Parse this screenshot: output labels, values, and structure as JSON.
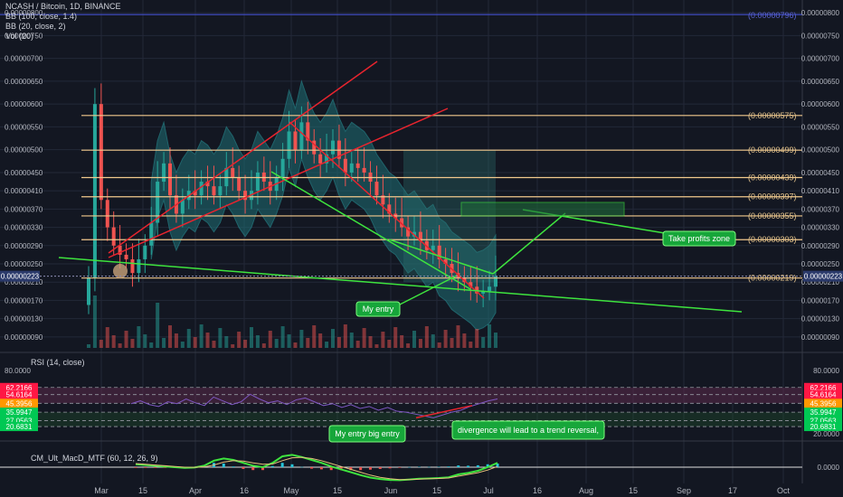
{
  "header": {
    "symbol_line": "NCASH / Bitcoin, 1D, BINANCE",
    "indicators": [
      "BB (100, close, 1.4)",
      "BB (20, close, 2)",
      "Vol (20)"
    ]
  },
  "colors": {
    "background": "#131722",
    "grid": "#232838",
    "candle_up": "#26a69a",
    "candle_down": "#ef5350",
    "bb_fill": "#1f6f74",
    "trendline_red": "#e8242e",
    "trendline_green": "#3ee43e",
    "fib_line": "#f2c98d",
    "price_tag": "#2b3a6b",
    "rsi_band": "#5b2a4a"
  },
  "chart_data": [
    {
      "type": "candlestick",
      "panel": "price",
      "title": "NCASH / Bitcoin, 1D, BINANCE",
      "x_tick_labels": [
        "Mar",
        "15",
        "Apr",
        "16",
        "May",
        "15",
        "Jun",
        "15",
        "Jul",
        "16",
        "Aug",
        "15",
        "Sep",
        "17",
        "Oct"
      ],
      "y_tick_labels": [
        "0.00000800",
        "0.00000750",
        "0.00000700",
        "0.00000650",
        "0.00000600",
        "0.00000550",
        "0.00000500",
        "0.00000450",
        "0.00000410",
        "0.00000370",
        "0.00000330",
        "0.00000290",
        "0.00000250",
        "0.00000210",
        "0.00000170",
        "0.00000130",
        "0.00000090"
      ],
      "ylim": [
        6e-07,
        8.2e-06
      ],
      "current_price": "0.00000223",
      "top_tag": "(0.00000796)",
      "fib_levels": [
        {
          "value": 5.75e-06,
          "label": "(0.00000575)"
        },
        {
          "value": 4.99e-06,
          "label": "(0.00000499)"
        },
        {
          "value": 4.39e-06,
          "label": "(0.00000439)"
        },
        {
          "value": 3.97e-06,
          "label": "(0.00000397)"
        },
        {
          "value": 3.55e-06,
          "label": "(0.00000355)"
        },
        {
          "value": 3.03e-06,
          "label": "(0.00000303)"
        },
        {
          "value": 2.19e-06,
          "label": "(0.00000219)"
        }
      ],
      "path_close": [
        2.2,
        6.0,
        3.9,
        3.3,
        2.9,
        2.7,
        2.6,
        2.3,
        2.6,
        2.9,
        3.4,
        4.3,
        4.7,
        4.0,
        3.6,
        3.9,
        4.1,
        4.0,
        4.3,
        4.2,
        4.0,
        4.2,
        4.6,
        4.4,
        4.1,
        3.9,
        4.1,
        4.5,
        4.3,
        4.1,
        4.4,
        4.8,
        5.4,
        5.0,
        5.6,
        5.2,
        4.9,
        4.7,
        4.9,
        5.2,
        4.8,
        4.5,
        4.7,
        4.6,
        4.5,
        4.3,
        4.0,
        3.8,
        3.6,
        3.5,
        3.3,
        3.1,
        3.2,
        3.0,
        2.8,
        2.9,
        2.6,
        2.5,
        2.3,
        2.2,
        2.1,
        2.0,
        1.85,
        1.9,
        2.0,
        2.23
      ]
    },
    {
      "type": "line",
      "panel": "rsi",
      "title": "RSI (14, close)",
      "y_tick_labels": [
        "80.0000",
        "20.0000"
      ],
      "levels": [
        {
          "value": 62.2166,
          "label": "62.2166",
          "color": "#ff1744"
        },
        {
          "value": 54.6164,
          "label": "54.6164",
          "color": "#ff1744"
        },
        {
          "value": 45.3956,
          "label": "45.3956",
          "color": "#ff9800"
        },
        {
          "value": 35.9947,
          "label": "35.9947",
          "color": "#00c853"
        },
        {
          "value": 27.0563,
          "label": "27.0563",
          "color": "#00c853"
        },
        {
          "value": 20.6831,
          "label": "20.6831",
          "color": "#00c853"
        }
      ],
      "ylim": [
        15,
        85
      ],
      "values": [
        45,
        48,
        44,
        42,
        47,
        45,
        50,
        46,
        43,
        52,
        48,
        44,
        47,
        55,
        50,
        46,
        48,
        44,
        49,
        51,
        47,
        43,
        45,
        41,
        44,
        40,
        42,
        38,
        41,
        37,
        36,
        34,
        32,
        30,
        33,
        36,
        38,
        42,
        45,
        48,
        50
      ]
    },
    {
      "type": "line",
      "panel": "macd",
      "title": "CM_Ult_MacD_MTF (60, 12, 26, 9)",
      "y_tick_labels": [
        "0.0000"
      ],
      "series_macd": [
        0.2,
        0.15,
        0.1,
        0.05,
        0.0,
        -0.05,
        -0.02,
        0.1,
        0.45,
        0.6,
        0.5,
        0.3,
        0.1,
        0.0,
        0.3,
        0.75,
        0.85,
        0.7,
        0.5,
        0.3,
        0.05,
        -0.15,
        -0.35,
        -0.55,
        -0.72,
        -0.82,
        -0.88,
        -0.9,
        -0.85,
        -0.8,
        -0.78,
        -0.75,
        -0.7,
        -0.5,
        -0.4,
        -0.25,
        0.0,
        0.3
      ],
      "series_signal": [
        0.25,
        0.2,
        0.15,
        0.1,
        0.05,
        0.0,
        -0.01,
        0.02,
        0.15,
        0.35,
        0.45,
        0.42,
        0.3,
        0.2,
        0.22,
        0.45,
        0.65,
        0.68,
        0.6,
        0.45,
        0.25,
        0.05,
        -0.15,
        -0.35,
        -0.55,
        -0.7,
        -0.8,
        -0.86,
        -0.86,
        -0.83,
        -0.8,
        -0.78,
        -0.75,
        -0.62,
        -0.5,
        -0.38,
        -0.2,
        0.05
      ]
    }
  ],
  "annotations": {
    "take_profits": "Take profits zone",
    "my_entry": "My entry",
    "big_entry": "My entry big entry",
    "divergence": "divergence will lead to a trend reversal,"
  }
}
